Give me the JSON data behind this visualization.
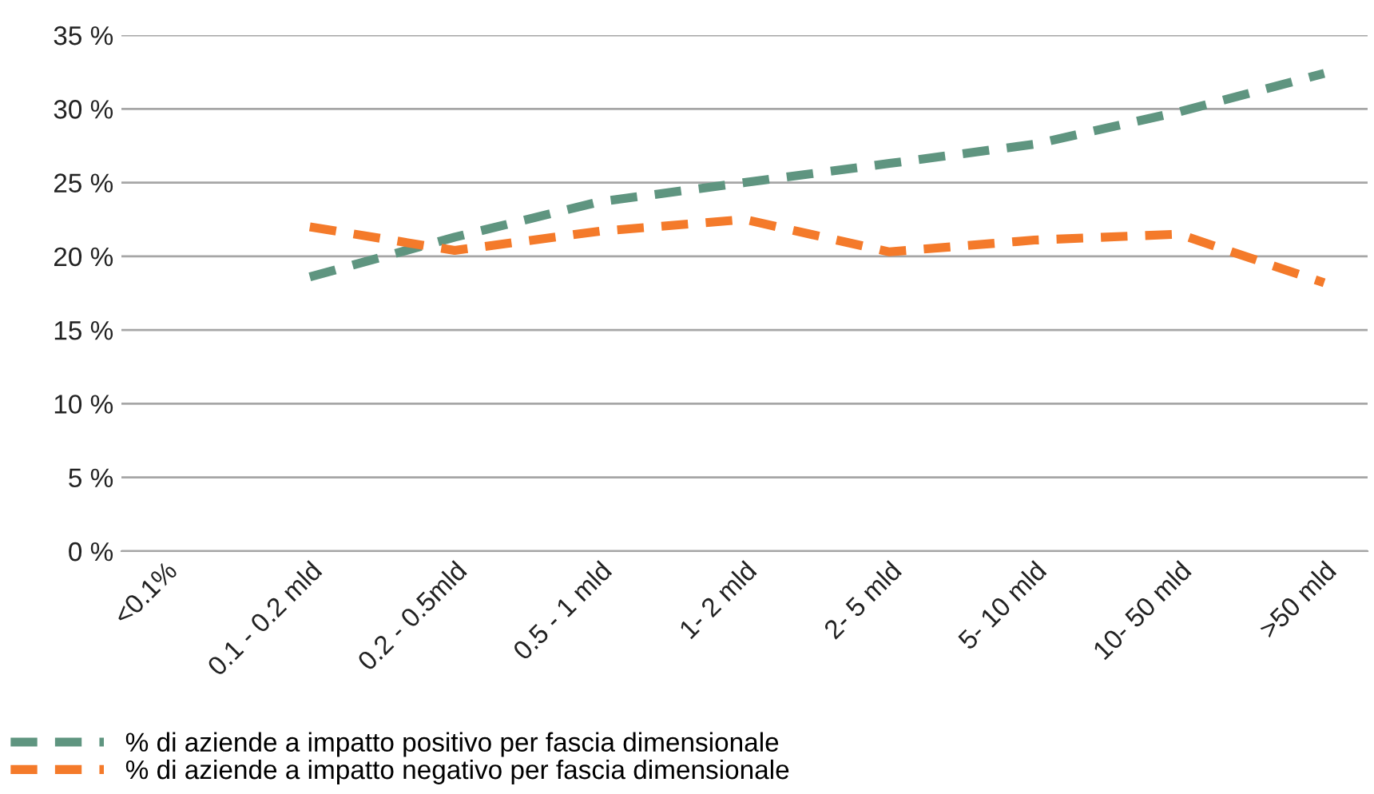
{
  "chart_data": {
    "type": "line",
    "categories": [
      "<0.1%",
      "0.1 - 0.2 mld",
      "0.2 - 0.5mld",
      "0.5 - 1 mld",
      "1- 2 mld",
      "2- 5 mld",
      "5- 10 mld",
      "10- 50 mld",
      ">50 mld"
    ],
    "series": [
      {
        "name": "% di aziende a impatto positivo per fascia dimensionale",
        "color": "#5f9580",
        "values": [
          null,
          18.6,
          21.3,
          23.7,
          25.0,
          26.3,
          27.6,
          29.8,
          32.4
        ]
      },
      {
        "name": "% di aziende a impatto negativo per fascia dimensionale",
        "color": "#f47a2a",
        "values": [
          null,
          22.0,
          20.4,
          21.7,
          22.5,
          20.3,
          21.1,
          21.5,
          18.2
        ]
      }
    ],
    "ylim": [
      0,
      35
    ],
    "yticks": [
      {
        "value": 0,
        "label": "0 %"
      },
      {
        "value": 5,
        "label": "5 %"
      },
      {
        "value": 10,
        "label": "10 %"
      },
      {
        "value": 15,
        "label": "15 %"
      },
      {
        "value": 20,
        "label": "20 %"
      },
      {
        "value": 25,
        "label": "25 %"
      },
      {
        "value": 30,
        "label": "30 %"
      },
      {
        "value": 35,
        "label": "35 %"
      }
    ],
    "grid": "y",
    "legend": "bottom",
    "line_style": "dashed",
    "marker": "none"
  }
}
